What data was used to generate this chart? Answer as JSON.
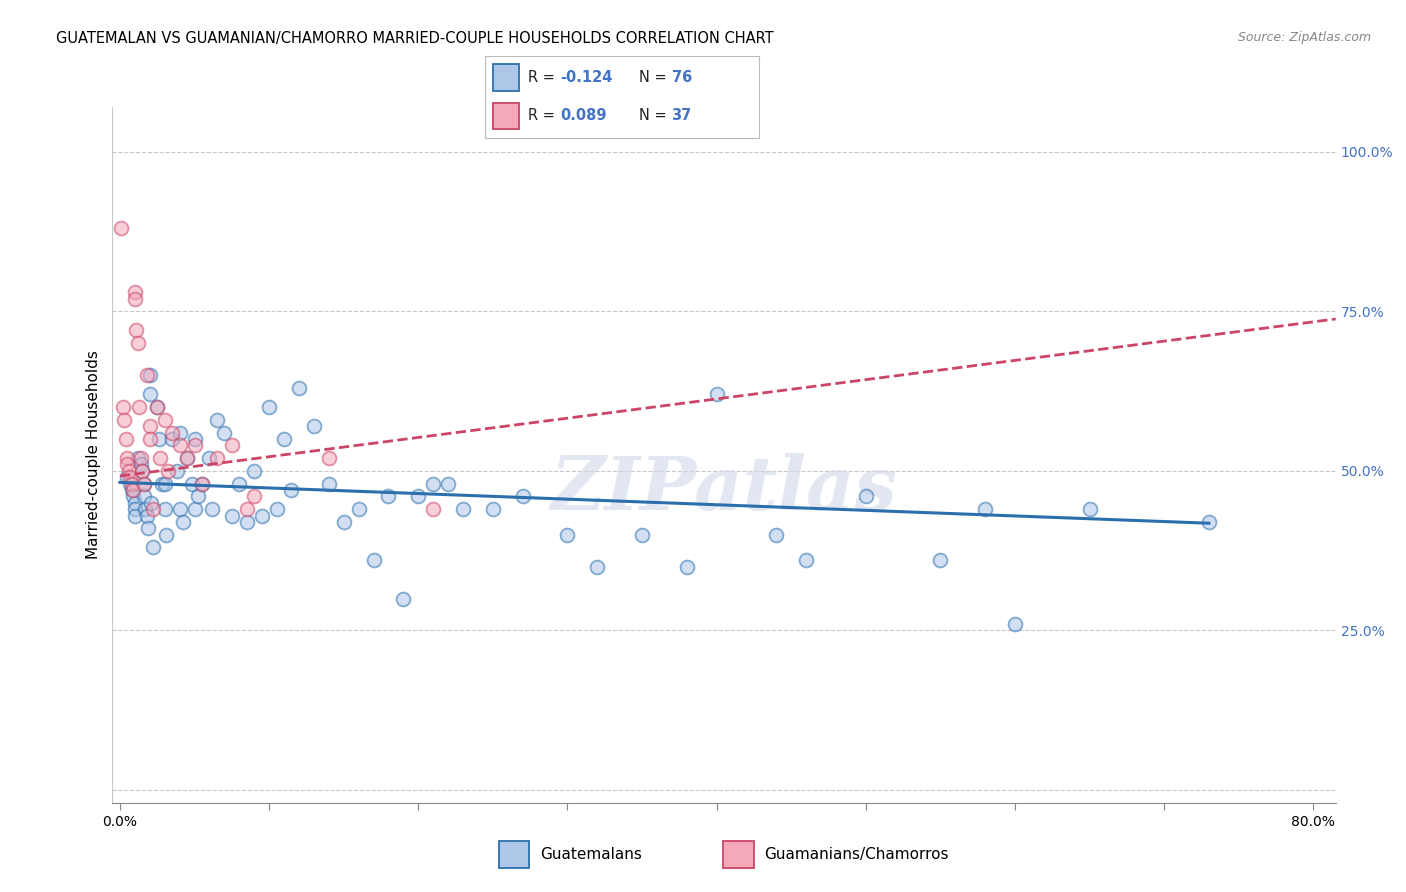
{
  "title": "GUATEMALAN VS GUAMANIAN/CHAMORRO MARRIED-COUPLE HOUSEHOLDS CORRELATION CHART",
  "source": "Source: ZipAtlas.com",
  "ylabel": "Married-couple Households",
  "xlim": [
    -0.005,
    0.815
  ],
  "ylim": [
    -0.02,
    1.07
  ],
  "xticks": [
    0.0,
    0.1,
    0.2,
    0.3,
    0.4,
    0.5,
    0.6,
    0.7,
    0.8
  ],
  "xticklabels": [
    "0.0%",
    "",
    "",
    "",
    "",
    "",
    "",
    "",
    "80.0%"
  ],
  "ytick_positions": [
    0.0,
    0.25,
    0.5,
    0.75,
    1.0
  ],
  "yticklabels_right": [
    "",
    "25.0%",
    "50.0%",
    "75.0%",
    "100.0%"
  ],
  "blue_fill": "#aec6e8",
  "blue_edge": "#2c6fad",
  "pink_fill": "#f4a8b8",
  "pink_edge": "#cc4466",
  "blue_line_color": "#2c6fad",
  "pink_line_color": "#cc4466",
  "right_tick_color": "#4472c4",
  "blue_trend_x": [
    0.0,
    0.73
  ],
  "blue_trend_y": [
    0.482,
    0.418
  ],
  "pink_trend_x": [
    0.0,
    0.815
  ],
  "pink_trend_y": [
    0.492,
    0.738
  ],
  "blue_x": [
    0.005,
    0.007,
    0.008,
    0.009,
    0.01,
    0.01,
    0.01,
    0.012,
    0.014,
    0.015,
    0.016,
    0.016,
    0.017,
    0.018,
    0.019,
    0.02,
    0.02,
    0.021,
    0.022,
    0.025,
    0.026,
    0.028,
    0.03,
    0.03,
    0.031,
    0.035,
    0.038,
    0.04,
    0.04,
    0.042,
    0.045,
    0.048,
    0.05,
    0.05,
    0.052,
    0.055,
    0.06,
    0.062,
    0.065,
    0.07,
    0.075,
    0.08,
    0.085,
    0.09,
    0.095,
    0.1,
    0.105,
    0.11,
    0.115,
    0.12,
    0.13,
    0.14,
    0.15,
    0.16,
    0.17,
    0.18,
    0.19,
    0.2,
    0.21,
    0.22,
    0.23,
    0.25,
    0.27,
    0.3,
    0.32,
    0.35,
    0.38,
    0.4,
    0.44,
    0.46,
    0.5,
    0.55,
    0.58,
    0.6,
    0.65,
    0.73
  ],
  "blue_y": [
    0.49,
    0.48,
    0.47,
    0.46,
    0.45,
    0.44,
    0.43,
    0.52,
    0.51,
    0.5,
    0.48,
    0.46,
    0.44,
    0.43,
    0.41,
    0.65,
    0.62,
    0.45,
    0.38,
    0.6,
    0.55,
    0.48,
    0.48,
    0.44,
    0.4,
    0.55,
    0.5,
    0.56,
    0.44,
    0.42,
    0.52,
    0.48,
    0.55,
    0.44,
    0.46,
    0.48,
    0.52,
    0.44,
    0.58,
    0.56,
    0.43,
    0.48,
    0.42,
    0.5,
    0.43,
    0.6,
    0.44,
    0.55,
    0.47,
    0.63,
    0.57,
    0.48,
    0.42,
    0.44,
    0.36,
    0.46,
    0.3,
    0.46,
    0.48,
    0.48,
    0.44,
    0.44,
    0.46,
    0.4,
    0.35,
    0.4,
    0.35,
    0.62,
    0.4,
    0.36,
    0.46,
    0.36,
    0.44,
    0.26,
    0.44,
    0.42
  ],
  "pink_x": [
    0.001,
    0.002,
    0.003,
    0.004,
    0.005,
    0.005,
    0.006,
    0.007,
    0.008,
    0.009,
    0.01,
    0.01,
    0.011,
    0.012,
    0.013,
    0.014,
    0.015,
    0.016,
    0.018,
    0.02,
    0.02,
    0.022,
    0.025,
    0.027,
    0.03,
    0.032,
    0.035,
    0.04,
    0.045,
    0.05,
    0.055,
    0.065,
    0.075,
    0.085,
    0.09,
    0.14,
    0.21
  ],
  "pink_y": [
    0.88,
    0.6,
    0.58,
    0.55,
    0.52,
    0.51,
    0.5,
    0.49,
    0.48,
    0.47,
    0.78,
    0.77,
    0.72,
    0.7,
    0.6,
    0.52,
    0.5,
    0.48,
    0.65,
    0.57,
    0.55,
    0.44,
    0.6,
    0.52,
    0.58,
    0.5,
    0.56,
    0.54,
    0.52,
    0.54,
    0.48,
    0.52,
    0.54,
    0.44,
    0.46,
    0.52,
    0.44
  ],
  "watermark_text": "ZIPatlas",
  "background_color": "#ffffff",
  "grid_color": "#c8c8c8",
  "title_fontsize": 10.5,
  "ylabel_fontsize": 11,
  "tick_fontsize": 10,
  "marker_size": 100,
  "marker_alpha": 0.55,
  "marker_linewidth": 1.3
}
